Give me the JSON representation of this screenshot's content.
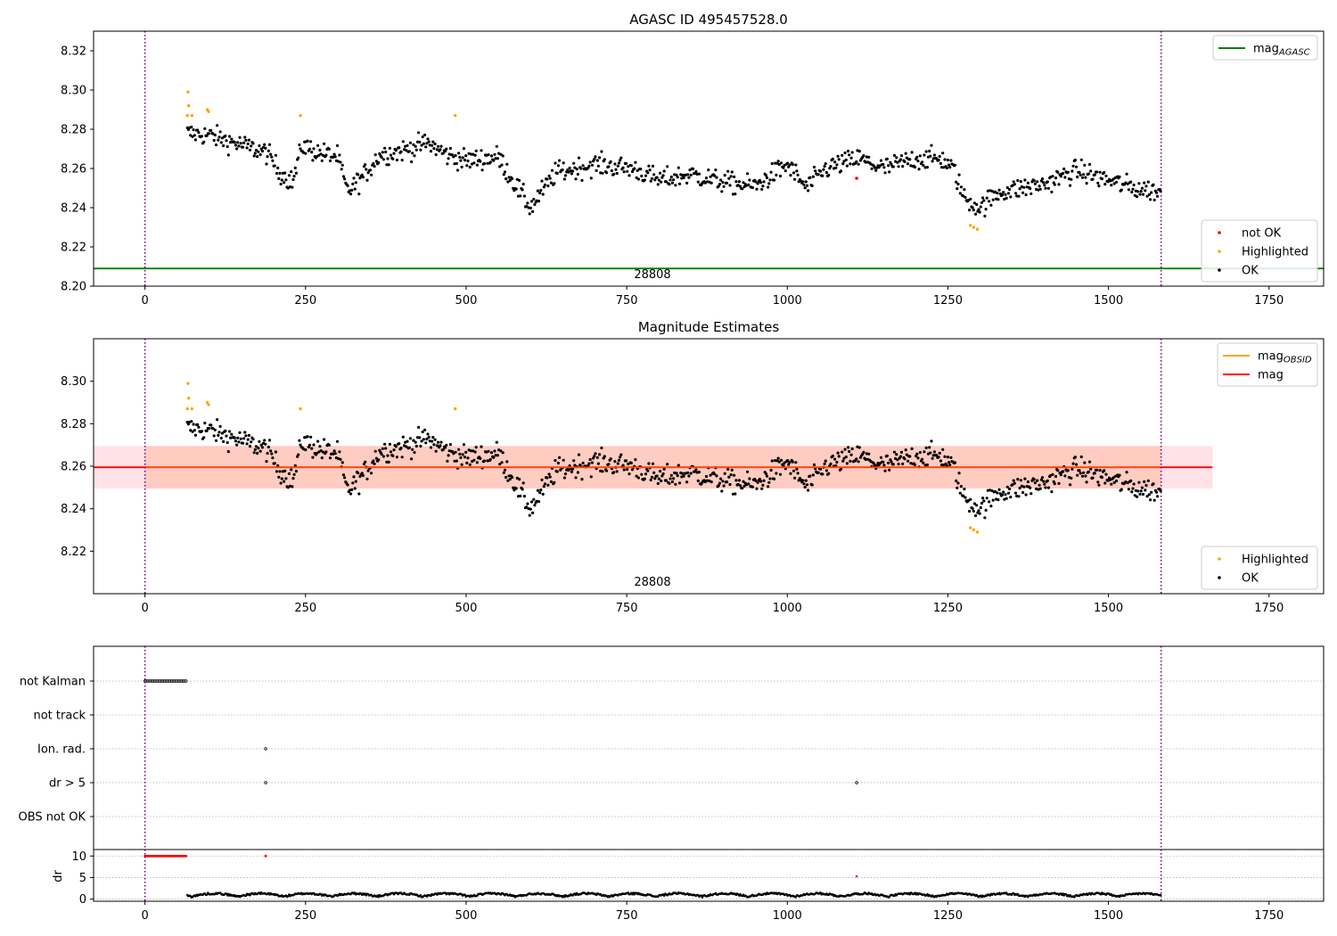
{
  "figure": {
    "colors": {
      "ok": "#000000",
      "highlighted": "#ffa500",
      "not_ok": "#ff0000",
      "agasc": "#008000",
      "mag": "#ff0000",
      "mag_obsid": "#ffa500",
      "band": "#ff9966",
      "band_outer": "#ffc0cb",
      "obs_marker": "#800080"
    },
    "obs_marker": {
      "name": "obsid boundary",
      "x": [
        0,
        1582
      ]
    }
  },
  "chart_data": [
    {
      "id": "agasc",
      "type": "scatter",
      "title": "AGASC ID 495457528.0",
      "xlim": [
        -80,
        1835
      ],
      "ylim": [
        8.2,
        8.33
      ],
      "xticks": [
        0,
        250,
        500,
        750,
        1000,
        1250,
        1500,
        1750
      ],
      "yticks": [
        8.2,
        8.22,
        8.24,
        8.26,
        8.28,
        8.3,
        8.32
      ],
      "ytick_labels": [
        "8.20",
        "8.22",
        "8.24",
        "8.26",
        "8.28",
        "8.30",
        "8.32"
      ],
      "obsid_label": "28808",
      "agasc_mag": 8.209,
      "legend_top": [
        {
          "label": "mag",
          "sub": "AGASC",
          "kind": "line",
          "color": "#008000"
        }
      ],
      "legend_bottom": [
        {
          "label": "not OK",
          "kind": "dot",
          "color": "#ff0000"
        },
        {
          "label": "Highlighted",
          "kind": "dot",
          "color": "#ffa500"
        },
        {
          "label": "OK",
          "kind": "dot",
          "color": "#000000"
        }
      ]
    },
    {
      "id": "estimates",
      "type": "scatter",
      "title": "Magnitude Estimates",
      "xlim": [
        -80,
        1835
      ],
      "ylim": [
        8.2,
        8.32
      ],
      "xticks": [
        0,
        250,
        500,
        750,
        1000,
        1250,
        1500,
        1750
      ],
      "yticks": [
        8.22,
        8.24,
        8.26,
        8.28,
        8.3
      ],
      "ytick_labels": [
        "8.22",
        "8.24",
        "8.26",
        "8.28",
        "8.30"
      ],
      "obsid_label": "28808",
      "mean_mag": 8.2595,
      "band": [
        8.2495,
        8.2695
      ],
      "band_x": [
        -80,
        1662
      ],
      "legend_top": [
        {
          "label": "mag",
          "sub": "OBSID",
          "kind": "line",
          "color": "#ffa500"
        },
        {
          "label": "mag",
          "sub": "",
          "kind": "line",
          "color": "#ff0000"
        }
      ],
      "legend_bottom": [
        {
          "label": "Highlighted",
          "kind": "dot",
          "color": "#ffa500"
        },
        {
          "label": "OK",
          "kind": "dot",
          "color": "#000000"
        }
      ]
    },
    {
      "id": "flags",
      "type": "scatter",
      "xlim": [
        -80,
        1835
      ],
      "categories": [
        "not Kalman",
        "not track",
        "Ion. rad.",
        "dr > 5",
        "OBS not OK"
      ],
      "flag_runs": [
        {
          "category": "not Kalman",
          "x_from": 0,
          "x_to": 65
        }
      ],
      "flag_points": [
        {
          "category": "Ion. rad.",
          "x": 188
        },
        {
          "category": "dr > 5",
          "x": 188
        },
        {
          "category": "dr > 5",
          "x": 1108
        }
      ]
    },
    {
      "id": "dr",
      "type": "scatter",
      "ylabel": "dr",
      "xlim": [
        -80,
        1835
      ],
      "ylim": [
        -0.5,
        11.5
      ],
      "xticks": [
        0,
        250,
        500,
        750,
        1000,
        1250,
        1500,
        1750
      ],
      "yticks": [
        0,
        5,
        10
      ],
      "ytick_labels": [
        "0",
        "5",
        "10"
      ],
      "clipped_value": 10,
      "clipped_runs": [
        {
          "x_from": 0,
          "x_to": 65
        }
      ],
      "clipped_points": [
        188
      ],
      "spike": {
        "x": 1108,
        "y": 5.3
      }
    }
  ]
}
